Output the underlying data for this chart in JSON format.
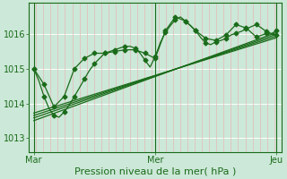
{
  "bg_color": "#cce8d8",
  "plot_bg_color": "#cce8d8",
  "grid_color_h": "#ffffff",
  "grid_color_v": "#e8b8b8",
  "line_color": "#1a6b1a",
  "xlabel": "Pression niveau de la mer( hPa )",
  "yticks": [
    1013,
    1014,
    1015,
    1016
  ],
  "ylim": [
    1012.6,
    1016.9
  ],
  "xtick_labels": [
    "Mar",
    "Mer",
    "Jeu"
  ],
  "xtick_pos": [
    0.0,
    0.5,
    1.0
  ],
  "xlim": [
    -0.02,
    1.02
  ],
  "line1_x": [
    0.0,
    0.021,
    0.042,
    0.063,
    0.083,
    0.104,
    0.125,
    0.146,
    0.167,
    0.188,
    0.208,
    0.229,
    0.25,
    0.271,
    0.292,
    0.313,
    0.333,
    0.354,
    0.375,
    0.396,
    0.417,
    0.438,
    0.458,
    0.479,
    0.5,
    0.521,
    0.542,
    0.563,
    0.583,
    0.604,
    0.625,
    0.646,
    0.667,
    0.688,
    0.708,
    0.729,
    0.75,
    0.771,
    0.792,
    0.813,
    0.833,
    0.854,
    0.875,
    0.896,
    0.917,
    0.938,
    0.958,
    0.979,
    1.0
  ],
  "line1_y": [
    1015.0,
    1014.65,
    1014.2,
    1013.85,
    1013.65,
    1013.6,
    1013.75,
    1013.95,
    1014.2,
    1014.45,
    1014.7,
    1014.95,
    1015.15,
    1015.3,
    1015.45,
    1015.5,
    1015.55,
    1015.6,
    1015.65,
    1015.65,
    1015.6,
    1015.45,
    1015.25,
    1015.05,
    1015.35,
    1015.75,
    1016.05,
    1016.25,
    1016.42,
    1016.5,
    1016.38,
    1016.25,
    1016.1,
    1015.9,
    1015.75,
    1015.7,
    1015.78,
    1015.82,
    1015.88,
    1015.98,
    1016.03,
    1016.08,
    1016.15,
    1016.22,
    1016.28,
    1016.18,
    1016.08,
    1016.02,
    1016.1
  ],
  "line2_x": [
    0.0,
    0.042,
    0.083,
    0.125,
    0.167,
    0.208,
    0.25,
    0.292,
    0.333,
    0.375,
    0.417,
    0.458,
    0.5,
    0.542,
    0.583,
    0.625,
    0.667,
    0.708,
    0.75,
    0.792,
    0.833,
    0.875,
    0.917,
    0.958,
    1.0
  ],
  "line2_y": [
    1015.0,
    1014.55,
    1013.9,
    1014.2,
    1015.0,
    1015.3,
    1015.45,
    1015.45,
    1015.5,
    1015.55,
    1015.55,
    1015.45,
    1015.3,
    1016.1,
    1016.5,
    1016.38,
    1016.1,
    1015.88,
    1015.82,
    1015.98,
    1016.28,
    1016.18,
    1015.92,
    1016.02,
    1015.98
  ],
  "straight_lines": [
    {
      "x": [
        0.0,
        1.0
      ],
      "y": [
        1013.5,
        1016.05
      ]
    },
    {
      "x": [
        0.0,
        1.0
      ],
      "y": [
        1013.58,
        1016.0
      ]
    },
    {
      "x": [
        0.0,
        1.0
      ],
      "y": [
        1013.65,
        1015.95
      ]
    },
    {
      "x": [
        0.0,
        1.0
      ],
      "y": [
        1013.72,
        1015.9
      ]
    }
  ],
  "marker_size": 2.5,
  "line_width": 0.9,
  "font_size_axis": 8,
  "font_size_tick": 7,
  "n_vgrid": 36,
  "n_hgrid": 4
}
